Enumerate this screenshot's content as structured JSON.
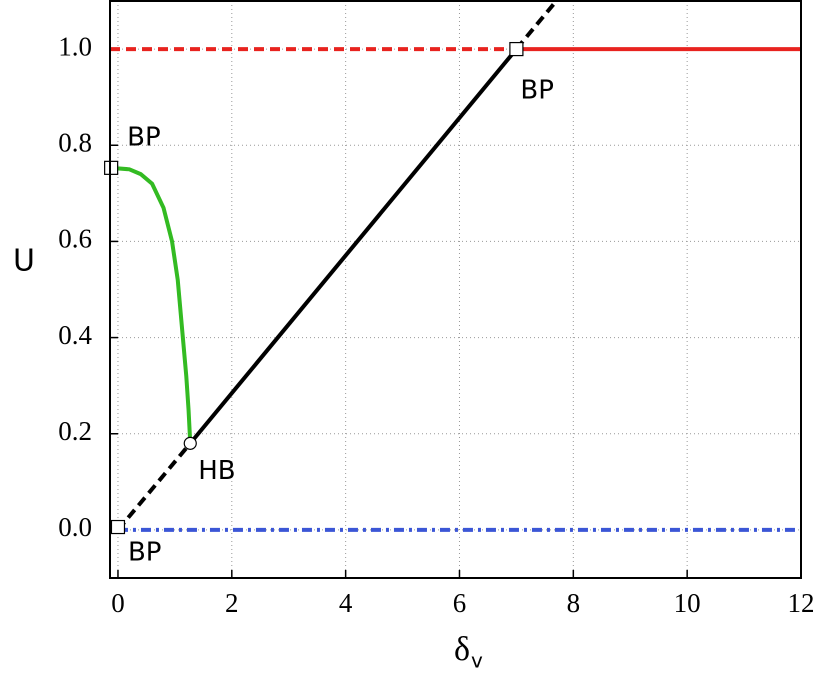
{
  "chart_data": {
    "type": "line",
    "xlabel": "δ",
    "xlabel_subscript": "v",
    "ylabel": "U",
    "xlim": [
      -0.14,
      12
    ],
    "ylim": [
      -0.1,
      1.1
    ],
    "xticks": [
      0,
      2,
      4,
      6,
      8,
      10,
      12
    ],
    "yticks": [
      {
        "value": 0,
        "label": "0.0"
      },
      0.2,
      0.4,
      0.6,
      0.8,
      {
        "value": 1,
        "label": "1.0"
      }
    ],
    "grid": true,
    "series": [
      {
        "color": "#e8231f",
        "dash": "dashed",
        "x": [
          -0.14,
          7
        ],
        "values": [
          1,
          1
        ]
      },
      {
        "color": "#e8231f",
        "dash": "solid",
        "x": [
          7,
          12
        ],
        "values": [
          1,
          1
        ]
      },
      {
        "color": "#3b56d6",
        "dash": "dashdot",
        "x": [
          0,
          12
        ],
        "values": [
          0,
          0
        ]
      },
      {
        "color": "#000000",
        "dash": "dashed",
        "x": [
          0,
          1.27
        ],
        "values": [
          0,
          0.18
        ]
      },
      {
        "color": "#000000",
        "dash": "solid",
        "x": [
          1.27,
          7
        ],
        "values": [
          0.18,
          1
        ]
      },
      {
        "color": "#000000",
        "dash": "dashed",
        "x": [
          7,
          7.7
        ],
        "values": [
          1,
          1.1
        ]
      },
      {
        "color": "#33bb22",
        "dash": "solid",
        "x": [
          -0.12,
          0.2,
          0.4,
          0.6,
          0.8,
          0.95,
          1.05,
          1.14,
          1.2,
          1.24,
          1.27
        ],
        "values": [
          0.753,
          0.75,
          0.74,
          0.72,
          0.67,
          0.6,
          0.52,
          0.4,
          0.32,
          0.25,
          0.18
        ]
      }
    ],
    "points": [
      {
        "label": "BP",
        "x": -0.12,
        "y": 0.753,
        "marker": "square"
      },
      {
        "label": "BP",
        "x": 7,
        "y": 1,
        "marker": "square"
      },
      {
        "label": "BP",
        "x": 0,
        "y": 0.006,
        "marker": "square"
      },
      {
        "label": "HB",
        "x": 1.27,
        "y": 0.18,
        "marker": "circle"
      }
    ]
  }
}
